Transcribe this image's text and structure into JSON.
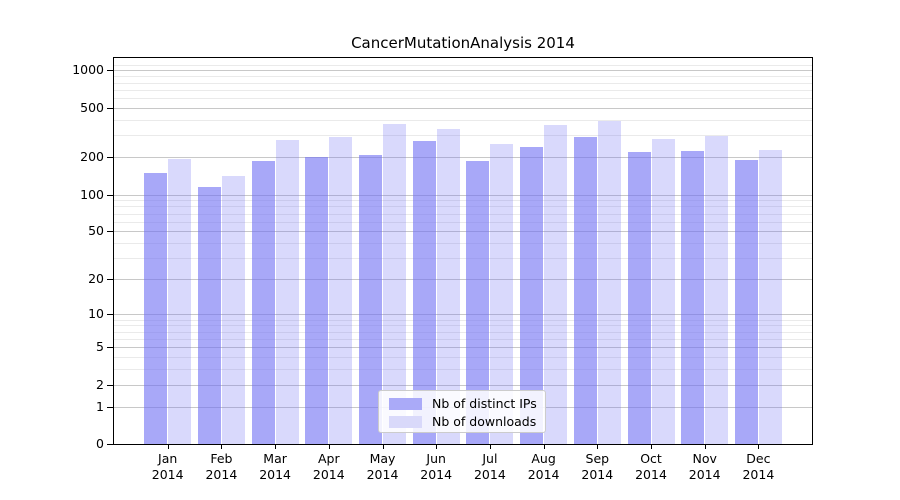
{
  "chart_data": {
    "type": "bar",
    "title": "CancerMutationAnalysis 2014",
    "categories": [
      "Jan 2014",
      "Feb 2014",
      "Mar 2014",
      "Apr 2014",
      "May 2014",
      "Jun 2014",
      "Jul 2014",
      "Aug 2014",
      "Sep 2014",
      "Oct 2014",
      "Nov 2014",
      "Dec 2014"
    ],
    "x_tick_months": [
      "Jan",
      "Feb",
      "Mar",
      "Apr",
      "May",
      "Jun",
      "Jul",
      "Aug",
      "Sep",
      "Oct",
      "Nov",
      "Dec"
    ],
    "x_tick_year": "2014",
    "series": [
      {
        "name": "Nb of distinct IPs",
        "legend_color": "#aaaaf8",
        "fill": "rgba(110,110,243,0.60)",
        "values": [
          150,
          115,
          185,
          200,
          210,
          270,
          185,
          240,
          290,
          220,
          225,
          190
        ]
      },
      {
        "name": "Nb of downloads",
        "legend_color": "#d9d9fa",
        "fill": "rgba(110,110,243,0.26)",
        "values": [
          195,
          140,
          275,
          290,
          370,
          340,
          255,
          365,
          390,
          280,
          295,
          230
        ]
      }
    ],
    "yscale": "log10(value+1)",
    "y_ticks": [
      0,
      1,
      2,
      5,
      10,
      20,
      50,
      100,
      200,
      500,
      1000
    ],
    "y_minor_gridlines": [
      3,
      4,
      6,
      7,
      8,
      9,
      30,
      40,
      60,
      70,
      80,
      90,
      300,
      400,
      600,
      700,
      800,
      900,
      1100
    ],
    "ylim": [
      0,
      1220
    ],
    "grid": true,
    "legend_position": "lower-center-inside",
    "spine_color": "#000000",
    "major_grid_color": "#c8c8c8",
    "minor_grid_color": "#eaeaea"
  }
}
